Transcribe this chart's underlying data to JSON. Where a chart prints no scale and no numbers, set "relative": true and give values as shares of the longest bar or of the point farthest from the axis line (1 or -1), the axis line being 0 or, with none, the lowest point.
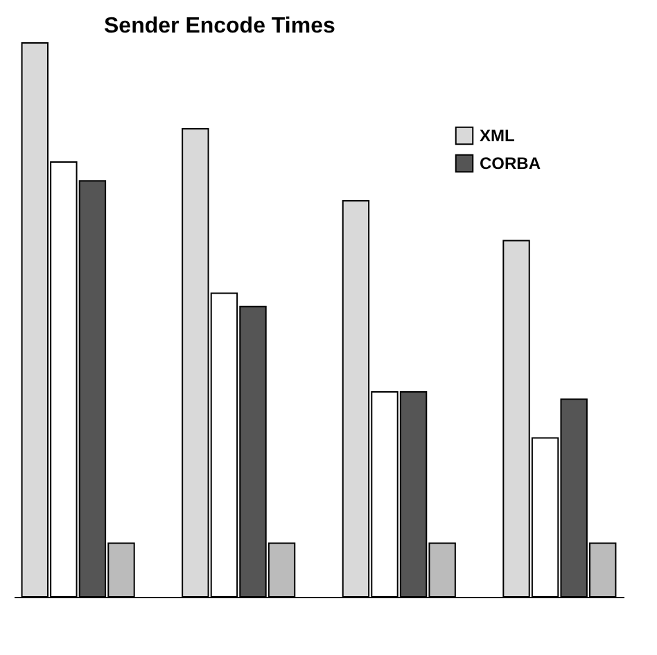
{
  "chart_data": {
    "type": "bar",
    "title": "Sender Encode Times",
    "relative": true,
    "categories": [
      null,
      null,
      null,
      null
    ],
    "series": [
      {
        "name": "XML",
        "color": "#d9d9d9",
        "values": [
          1,
          0.845,
          0.715,
          0.643
        ]
      },
      {
        "color": "#ffffff",
        "values": [
          0.785,
          0.548,
          0.37,
          0.287
        ]
      },
      {
        "name": "CORBA",
        "color": "#555555",
        "values": [
          0.751,
          0.524,
          0.37,
          0.357
        ]
      },
      {
        "color": "#bbbbbb",
        "values": [
          0.097,
          0.097,
          0.097,
          0.097
        ]
      }
    ],
    "legend": "top right"
  }
}
